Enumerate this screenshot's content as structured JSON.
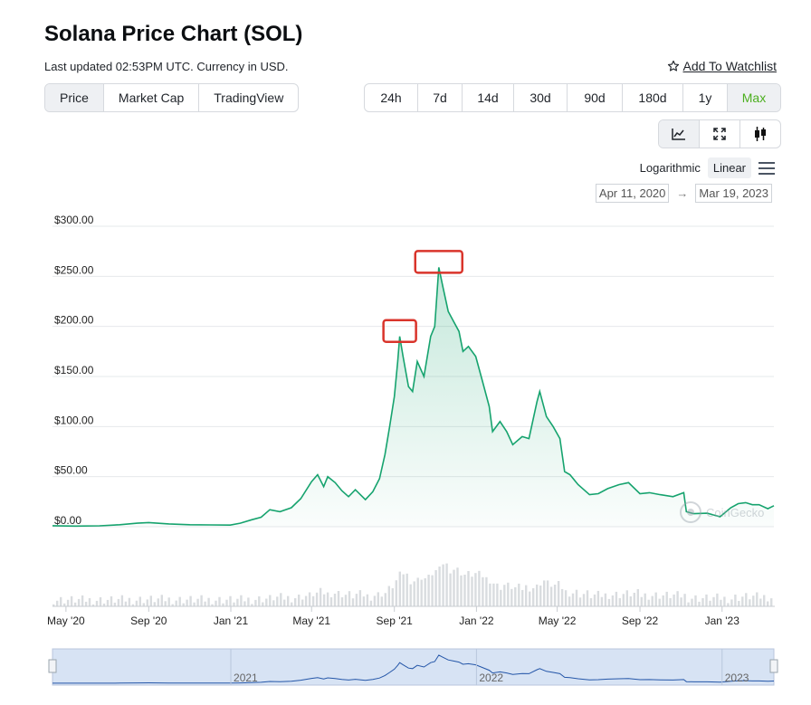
{
  "header": {
    "title": "Solana Price Chart (SOL)",
    "updated": "Last updated 02:53PM UTC. Currency in USD.",
    "watchlist": "Add To Watchlist"
  },
  "tabs_left": [
    "Price",
    "Market Cap",
    "TradingView"
  ],
  "tabs_right": [
    "24h",
    "7d",
    "14d",
    "30d",
    "90d",
    "180d",
    "1y",
    "Max"
  ],
  "chart_icons": [
    "line-chart-icon",
    "expand-icon",
    "candlestick-icon"
  ],
  "scale": {
    "log": "Logarithmic",
    "linear": "Linear"
  },
  "range": {
    "from": "Apr 11, 2020",
    "arrow": "→",
    "to": "Mar 19, 2023"
  },
  "watermark": "CoinGecko",
  "colors": {
    "line": "#16a36e",
    "accent": "#4caf1f",
    "highlight_box": "#d9342b",
    "nav_bg": "#d7e3f4"
  },
  "chart_data": {
    "type": "area",
    "title": "Solana Price Chart (SOL)",
    "ylabel": "",
    "ylim": [
      0,
      300
    ],
    "yticks": [
      "$300.00",
      "$250.00",
      "$200.00",
      "$150.00",
      "$100.00",
      "$50.00",
      "$0.00"
    ],
    "ytick_values": [
      300,
      250,
      200,
      150,
      100,
      50,
      0
    ],
    "xticks": [
      "May '20",
      "Sep '20",
      "Jan '21",
      "May '21",
      "Sep '21",
      "Jan '22",
      "May '22",
      "Sep '22",
      "Jan '23"
    ],
    "xtick_dates": [
      "2020-05-01",
      "2020-09-01",
      "2021-01-01",
      "2021-05-01",
      "2021-09-01",
      "2022-01-01",
      "2022-05-01",
      "2022-09-01",
      "2023-01-01"
    ],
    "navigator_labels": [
      "2021",
      "2022",
      "2023"
    ],
    "navigator_label_dates": [
      "2021-01-01",
      "2022-01-01",
      "2023-01-01"
    ],
    "x_start": "2020-04-11",
    "x_end": "2023-03-19",
    "grid": true,
    "series": [
      {
        "name": "Price",
        "points": [
          [
            "2020-04-11",
            0.95
          ],
          [
            "2020-05-15",
            0.6
          ],
          [
            "2020-06-20",
            0.9
          ],
          [
            "2020-07-20",
            2.0
          ],
          [
            "2020-08-15",
            3.5
          ],
          [
            "2020-09-01",
            4.2
          ],
          [
            "2020-10-01",
            2.8
          ],
          [
            "2020-11-01",
            2.0
          ],
          [
            "2020-12-01",
            1.8
          ],
          [
            "2020-12-31",
            1.6
          ],
          [
            "2021-01-15",
            3.5
          ],
          [
            "2021-02-01",
            7.0
          ],
          [
            "2021-02-15",
            9.5
          ],
          [
            "2021-02-28",
            17.0
          ],
          [
            "2021-03-15",
            15.0
          ],
          [
            "2021-04-01",
            19.0
          ],
          [
            "2021-04-15",
            28.0
          ],
          [
            "2021-05-01",
            45.0
          ],
          [
            "2021-05-10",
            52.0
          ],
          [
            "2021-05-19",
            40.0
          ],
          [
            "2021-05-25",
            50.0
          ],
          [
            "2021-06-05",
            44.0
          ],
          [
            "2021-06-15",
            36.0
          ],
          [
            "2021-06-25",
            30.0
          ],
          [
            "2021-07-05",
            37.0
          ],
          [
            "2021-07-20",
            27.0
          ],
          [
            "2021-07-31",
            35.0
          ],
          [
            "2021-08-10",
            48.0
          ],
          [
            "2021-08-18",
            72.0
          ],
          [
            "2021-08-25",
            100.0
          ],
          [
            "2021-09-01",
            130.0
          ],
          [
            "2021-09-06",
            165.0
          ],
          [
            "2021-09-09",
            190.0
          ],
          [
            "2021-09-14",
            170.0
          ],
          [
            "2021-09-22",
            140.0
          ],
          [
            "2021-09-28",
            135.0
          ],
          [
            "2021-10-05",
            165.0
          ],
          [
            "2021-10-15",
            150.0
          ],
          [
            "2021-10-25",
            190.0
          ],
          [
            "2021-10-31",
            200.0
          ],
          [
            "2021-11-06",
            259.0
          ],
          [
            "2021-11-12",
            240.0
          ],
          [
            "2021-11-20",
            215.0
          ],
          [
            "2021-11-28",
            205.0
          ],
          [
            "2021-12-06",
            195.0
          ],
          [
            "2021-12-12",
            175.0
          ],
          [
            "2021-12-20",
            180.0
          ],
          [
            "2021-12-31",
            170.0
          ],
          [
            "2022-01-10",
            145.0
          ],
          [
            "2022-01-20",
            120.0
          ],
          [
            "2022-01-25",
            95.0
          ],
          [
            "2022-02-05",
            105.0
          ],
          [
            "2022-02-15",
            95.0
          ],
          [
            "2022-02-24",
            82.0
          ],
          [
            "2022-03-10",
            90.0
          ],
          [
            "2022-03-20",
            88.0
          ],
          [
            "2022-04-01",
            125.0
          ],
          [
            "2022-04-05",
            135.0
          ],
          [
            "2022-04-15",
            110.0
          ],
          [
            "2022-04-25",
            100.0
          ],
          [
            "2022-05-05",
            88.0
          ],
          [
            "2022-05-12",
            55.0
          ],
          [
            "2022-05-20",
            52.0
          ],
          [
            "2022-06-01",
            42.0
          ],
          [
            "2022-06-18",
            32.0
          ],
          [
            "2022-07-01",
            33.0
          ],
          [
            "2022-07-15",
            38.0
          ],
          [
            "2022-08-01",
            42.0
          ],
          [
            "2022-08-15",
            44.0
          ],
          [
            "2022-09-01",
            33.0
          ],
          [
            "2022-09-15",
            34.0
          ],
          [
            "2022-10-01",
            32.0
          ],
          [
            "2022-10-20",
            30.0
          ],
          [
            "2022-11-05",
            34.0
          ],
          [
            "2022-11-09",
            15.0
          ],
          [
            "2022-11-20",
            13.0
          ],
          [
            "2022-12-10",
            13.5
          ],
          [
            "2022-12-29",
            9.9
          ],
          [
            "2023-01-14",
            19.0
          ],
          [
            "2023-01-25",
            23.0
          ],
          [
            "2023-02-05",
            24.0
          ],
          [
            "2023-02-15",
            22.0
          ],
          [
            "2023-02-25",
            22.0
          ],
          [
            "2023-03-10",
            18.0
          ],
          [
            "2023-03-19",
            21.0
          ]
        ]
      }
    ],
    "annotations": [
      {
        "type": "box",
        "date": "2021-09-09",
        "value": 190
      },
      {
        "type": "box",
        "date": "2021-11-06",
        "value": 259
      }
    ]
  }
}
